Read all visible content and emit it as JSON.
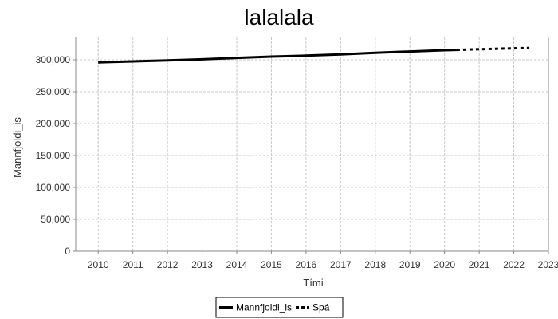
{
  "chart_data": {
    "type": "line",
    "title": "lalalala",
    "xlabel": "Tími",
    "ylabel": "Mannfjoldi_is",
    "xlim": [
      2009.35,
      2023.0
    ],
    "ylim": [
      0,
      335000
    ],
    "x_ticks": [
      2010,
      2011,
      2012,
      2013,
      2014,
      2015,
      2016,
      2017,
      2018,
      2019,
      2020,
      2021,
      2022,
      2023
    ],
    "y_ticks": [
      0,
      50000,
      100000,
      150000,
      200000,
      250000,
      300000
    ],
    "y_tick_labels": [
      "0",
      "50,000",
      "100,000",
      "150,000",
      "200,000",
      "250,000",
      "300,000"
    ],
    "grid": true,
    "legend_position": "bottom",
    "series": [
      {
        "name": "Mannfjoldi_is",
        "style": "solid",
        "color": "#000000",
        "x": [
          2010.0,
          2011.0,
          2012.0,
          2013.0,
          2014.0,
          2015.0,
          2016.0,
          2017.0,
          2018.0,
          2019.0,
          2020.0,
          2020.35
        ],
        "y": [
          296000,
          297500,
          299000,
          300800,
          303000,
          305000,
          306500,
          308500,
          311000,
          313000,
          315000,
          315500
        ]
      },
      {
        "name": "Spá",
        "style": "dotted",
        "color": "#000000",
        "x": [
          2020.35,
          2021.0,
          2022.0,
          2022.45
        ],
        "y": [
          315500,
          316500,
          318000,
          318500
        ]
      }
    ]
  }
}
